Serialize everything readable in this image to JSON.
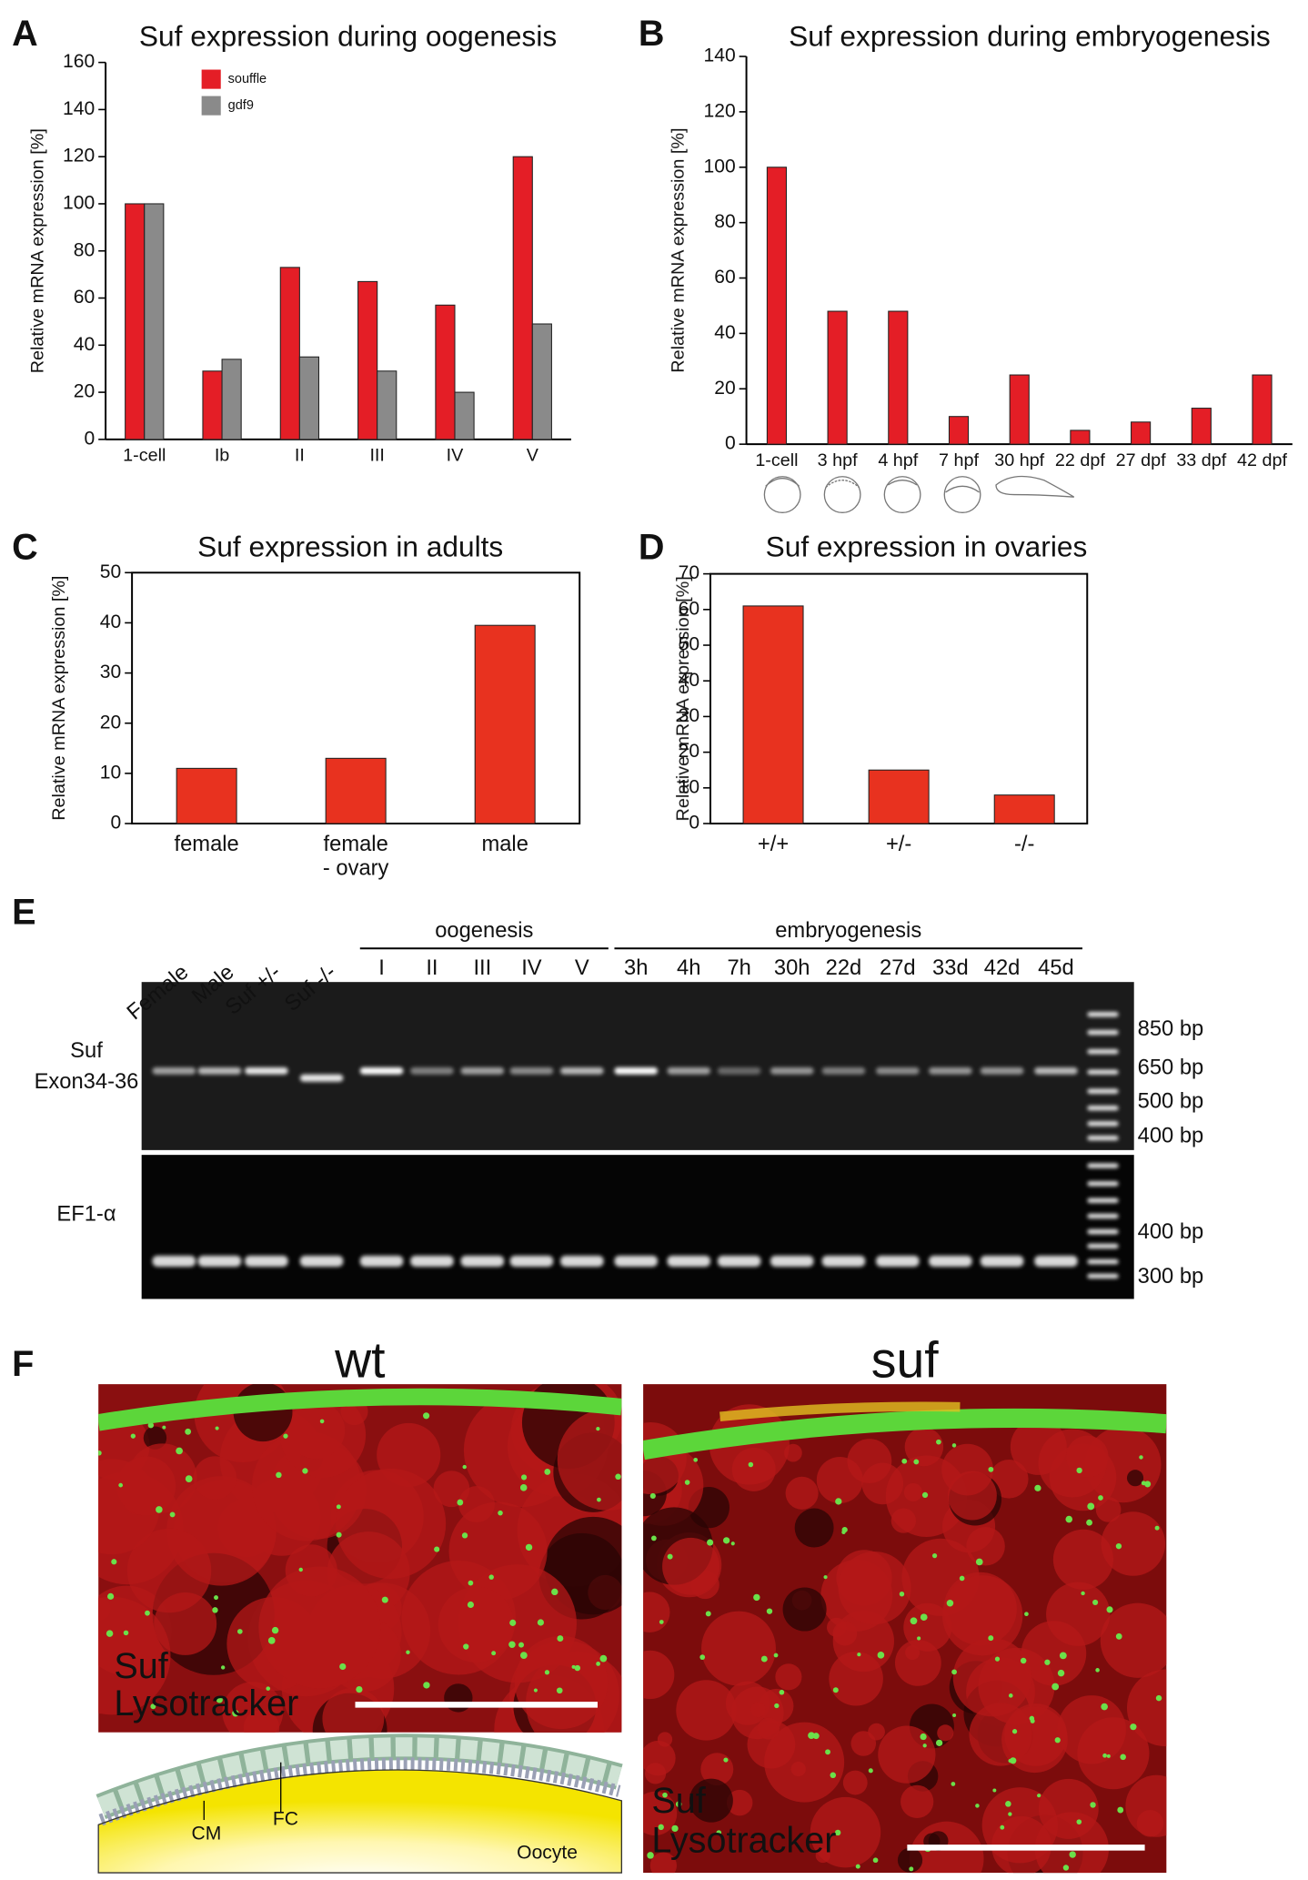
{
  "chart_data": [
    {
      "type": "bar",
      "label": "A",
      "title": "Suf expression during oogenesis",
      "y_label": "Relative mRNA expression [%]",
      "categories": [
        "1-cell",
        "Ib",
        "II",
        "III",
        "IV",
        "V"
      ],
      "series": [
        {
          "name": "souffle",
          "color": "#e41e26",
          "values": [
            100,
            29,
            73,
            67,
            57,
            120
          ]
        },
        {
          "name": "gdf9",
          "color": "#8a8a8a",
          "values": [
            100,
            34,
            35,
            29,
            20,
            49
          ]
        }
      ],
      "ylim": [
        0,
        160
      ],
      "yticks": [
        0,
        20,
        40,
        60,
        80,
        100,
        120,
        140,
        160
      ]
    },
    {
      "type": "bar",
      "label": "B",
      "title": "Suf expression during embryogenesis",
      "y_label": "Relative mRNA expression [%]",
      "categories": [
        "1-cell",
        "3 hpf",
        "4 hpf",
        "7 hpf",
        "30 hpf",
        "22 dpf",
        "27 dpf",
        "33 dpf",
        "42 dpf"
      ],
      "values": [
        100,
        48,
        48,
        10,
        25,
        5,
        8,
        13,
        25
      ],
      "color": "#e41e26",
      "ylim": [
        0,
        140
      ],
      "yticks": [
        0,
        20,
        40,
        60,
        80,
        100,
        120,
        140
      ]
    },
    {
      "type": "bar",
      "label": "C",
      "title": "Suf expression in adults",
      "y_label": "Relative mRNA expression [%]",
      "categories": [
        "female",
        [
          "female",
          "- ovary"
        ],
        "male"
      ],
      "values": [
        11,
        13,
        39.5
      ],
      "color": "#e8321f",
      "ylim": [
        0,
        50
      ],
      "yticks": [
        0,
        10,
        20,
        30,
        40,
        50
      ]
    },
    {
      "type": "bar",
      "label": "D",
      "title": "Suf expression in ovaries",
      "y_label": "Relative mRNA expression [%]",
      "categories": [
        "+/+",
        "+/-",
        "-/-"
      ],
      "values": [
        61,
        15,
        8
      ],
      "color": "#e8321f",
      "ylim": [
        0,
        70
      ],
      "yticks": [
        0,
        10,
        20,
        30,
        40,
        50,
        60,
        70
      ]
    }
  ],
  "gel": {
    "label": "E",
    "sample_lanes": [
      "Female",
      "Male",
      "Suf +/-",
      "Suf -/-"
    ],
    "groups": [
      {
        "name": "oogenesis",
        "lanes": [
          "I",
          "II",
          "III",
          "IV",
          "V"
        ]
      },
      {
        "name": "embryogenesis",
        "lanes": [
          "3h",
          "4h",
          "7h",
          "30h",
          "22d",
          "27d",
          "33d",
          "42d",
          "45d"
        ]
      }
    ],
    "rows": [
      {
        "name": [
          "Suf",
          "Exon34-36"
        ],
        "markers": [
          "850 bp",
          "650 bp",
          "500 bp",
          "400 bp"
        ]
      },
      {
        "name": [
          "EF1-α"
        ],
        "markers": [
          "400 bp",
          "300 bp"
        ]
      }
    ]
  },
  "micrographs": {
    "label": "F",
    "panels": [
      {
        "title": "wt",
        "stains": [
          "Suf",
          "Lysotracker"
        ],
        "schematic": [
          "CM",
          "FC",
          "Oocyte"
        ]
      },
      {
        "title": "suf",
        "stains": [
          "Suf",
          "Lysotracker"
        ]
      }
    ]
  }
}
